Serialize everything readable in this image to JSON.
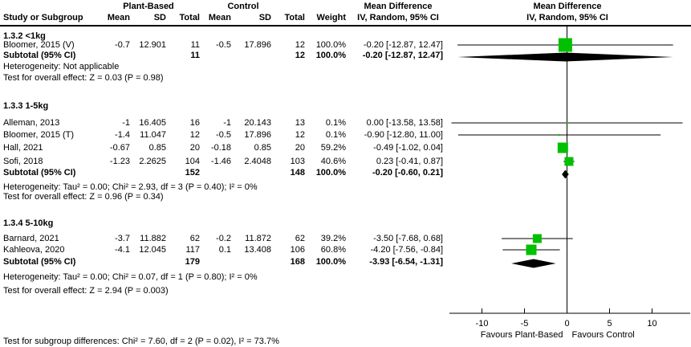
{
  "header": {
    "study_col": "Study or Subgroup",
    "group1": "Plant-Based",
    "group2": "Control",
    "mean": "Mean",
    "sd": "SD",
    "total": "Total",
    "weight": "Weight",
    "effect": "Mean Difference",
    "method": "IV, Random, 95% CI"
  },
  "footer": "Test for subgroup differences: Chi² = 7.60, df = 2 (P = 0.02), I² = 73.7%",
  "chart_data": {
    "type": "forest",
    "effect_measure": "Mean Difference",
    "model": "IV, Random, 95% CI",
    "axis": {
      "ticks": [
        -10,
        -5,
        0,
        5,
        10
      ],
      "xlim": [
        -13.8,
        14.5
      ],
      "favours_left": "Favours Plant-Based",
      "favours_right": "Favours Control"
    },
    "colors": {
      "square": "#00c000",
      "diamond": "#000000",
      "line": "#000000"
    },
    "subgroups": [
      {
        "label": "1.3.2 <1kg",
        "studies": [
          {
            "name": "Bloomer, 2015 (V)",
            "mean1": "-0.7",
            "sd1": "12.901",
            "total1": "11",
            "mean2": "-0.5",
            "sd2": "17.896",
            "total2": "12",
            "weight": "100.0%",
            "ci_text": "-0.20 [-12.87, 12.47]",
            "md": -0.2,
            "ci_low": -12.87,
            "ci_high": 12.47,
            "weight_pct": 100.0
          }
        ],
        "subtotal": {
          "label": "Subtotal (95% CI)",
          "total1": "11",
          "total2": "12",
          "weight": "100.0%",
          "ci_text": "-0.20 [-12.87, 12.47]",
          "md": -0.2,
          "ci_low": -12.87,
          "ci_high": 12.47
        },
        "heterogeneity": "Heterogeneity: Not applicable",
        "overall_test": "Test for overall effect: Z = 0.03 (P = 0.98)"
      },
      {
        "label": "1.3.3 1-5kg",
        "studies": [
          {
            "name": "Alleman, 2013",
            "mean1": "-1",
            "sd1": "16.405",
            "total1": "16",
            "mean2": "-1",
            "sd2": "20.143",
            "total2": "13",
            "weight": "0.1%",
            "ci_text": "0.00 [-13.58, 13.58]",
            "md": 0.0,
            "ci_low": -13.58,
            "ci_high": 13.58,
            "weight_pct": 0.1
          },
          {
            "name": "Bloomer, 2015 (T)",
            "mean1": "-1.4",
            "sd1": "11.047",
            "total1": "12",
            "mean2": "-0.5",
            "sd2": "17.896",
            "total2": "12",
            "weight": "0.1%",
            "ci_text": "-0.90 [-12.80, 11.00]",
            "md": -0.9,
            "ci_low": -12.8,
            "ci_high": 11.0,
            "weight_pct": 0.1
          },
          {
            "name": "Hall, 2021",
            "mean1": "-0.67",
            "sd1": "0.85",
            "total1": "20",
            "mean2": "-0.18",
            "sd2": "0.85",
            "total2": "20",
            "weight": "59.2%",
            "ci_text": "-0.49 [-1.02, 0.04]",
            "md": -0.49,
            "ci_low": -1.02,
            "ci_high": 0.04,
            "weight_pct": 59.2
          },
          {
            "name": "Sofi, 2018",
            "mean1": "-1.23",
            "sd1": "2.2625",
            "total1": "104",
            "mean2": "-1.46",
            "sd2": "2.4048",
            "total2": "103",
            "weight": "40.6%",
            "ci_text": "0.23 [-0.41, 0.87]",
            "md": 0.23,
            "ci_low": -0.41,
            "ci_high": 0.87,
            "weight_pct": 40.6
          }
        ],
        "subtotal": {
          "label": "Subtotal (95% CI)",
          "total1": "152",
          "total2": "148",
          "weight": "100.0%",
          "ci_text": "-0.20 [-0.60, 0.21]",
          "md": -0.2,
          "ci_low": -0.6,
          "ci_high": 0.21
        },
        "heterogeneity": "Heterogeneity: Tau² = 0.00; Chi² = 2.93, df = 3 (P = 0.40); I² = 0%",
        "overall_test": "Test for overall effect: Z = 0.96 (P = 0.34)"
      },
      {
        "label": "1.3.4 5-10kg",
        "studies": [
          {
            "name": "Barnard, 2021",
            "mean1": "-3.7",
            "sd1": "11.882",
            "total1": "62",
            "mean2": "-0.2",
            "sd2": "11.872",
            "total2": "62",
            "weight": "39.2%",
            "ci_text": "-3.50 [-7.68, 0.68]",
            "md": -3.5,
            "ci_low": -7.68,
            "ci_high": 0.68,
            "weight_pct": 39.2
          },
          {
            "name": "Kahleova, 2020",
            "mean1": "-4.1",
            "sd1": "12.045",
            "total1": "117",
            "mean2": "0.1",
            "sd2": "13.408",
            "total2": "106",
            "weight": "60.8%",
            "ci_text": "-4.20 [-7.56, -0.84]",
            "md": -4.2,
            "ci_low": -7.56,
            "ci_high": -0.84,
            "weight_pct": 60.8
          }
        ],
        "subtotal": {
          "label": "Subtotal (95% CI)",
          "total1": "179",
          "total2": "168",
          "weight": "100.0%",
          "ci_text": "-3.93 [-6.54, -1.31]",
          "md": -3.93,
          "ci_low": -6.54,
          "ci_high": -1.31
        },
        "heterogeneity": "Heterogeneity: Tau² = 0.00; Chi² = 0.07, df = 1 (P = 0.80); I² = 0%",
        "overall_test": "Test for overall effect: Z = 2.94 (P = 0.003)"
      }
    ]
  }
}
